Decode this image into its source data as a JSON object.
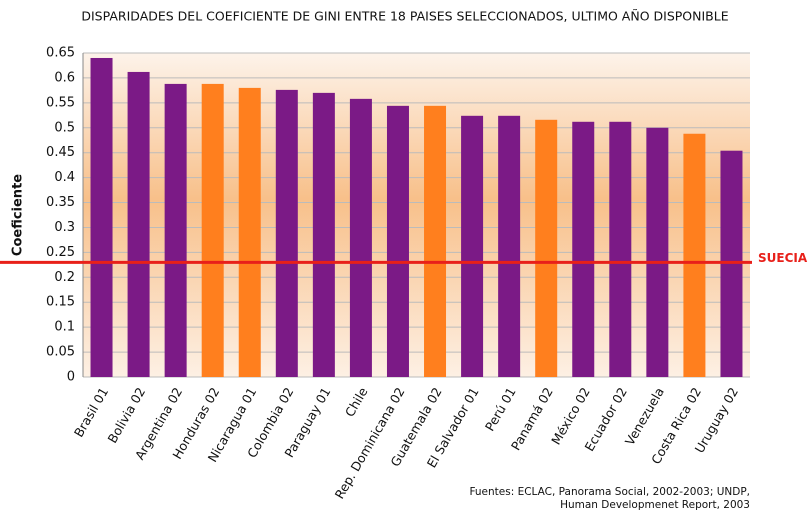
{
  "chart_data": {
    "type": "bar",
    "title": "DISPARIDADES DEL COEFICIENTE DE GINI ENTRE 18 PAISES SELECCIONADOS, ULTIMO AÑO DISPONIBLE",
    "y_label": "Coeficiente",
    "categories": [
      "Brasil 01",
      "Bolivia 02",
      "Argentina 02",
      "Honduras 02",
      "Nicaragua 01",
      "Colombia 02",
      "Paraguay 01",
      "Chile",
      "Rep. Dominicana 02",
      "Guatemala 02",
      "El Salvador 01",
      "Perú 01",
      "Panamá 02",
      "México 02",
      "Ecuador 02",
      "Venezuela",
      "Costa Rica 02",
      "Uruguay 02"
    ],
    "values": [
      0.64,
      0.612,
      0.588,
      0.588,
      0.58,
      0.576,
      0.57,
      0.558,
      0.544,
      0.544,
      0.524,
      0.524,
      0.516,
      0.512,
      0.512,
      0.5,
      0.488,
      0.454
    ],
    "colors": [
      "#7b1a86",
      "#7b1a86",
      "#7b1a86",
      "#ff7f1e",
      "#ff7f1e",
      "#7b1a86",
      "#7b1a86",
      "#7b1a86",
      "#7b1a86",
      "#ff7f1e",
      "#7b1a86",
      "#7b1a86",
      "#ff7f1e",
      "#7b1a86",
      "#7b1a86",
      "#7b1a86",
      "#ff7f1e",
      "#7b1a86"
    ],
    "ylim": [
      0,
      0.65
    ],
    "yticks": [
      0,
      0.05,
      0.1,
      0.15,
      0.2,
      0.25,
      0.3,
      0.35,
      0.4,
      0.45,
      0.5,
      0.55,
      0.6,
      0.65
    ],
    "grid": true,
    "reference_line": {
      "label": "SUECIA",
      "value": 0.23,
      "color": "#e8201a"
    },
    "source": [
      "Fuentes: ECLAC, Panorama Social, 2002-2003; UNDP,",
      "Human Developmenet Report, 2003"
    ]
  }
}
